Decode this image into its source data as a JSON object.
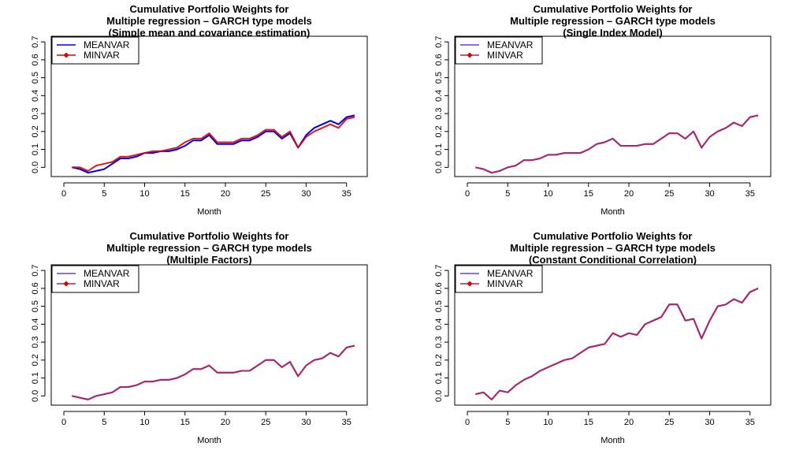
{
  "chart_data": [
    {
      "type": "line",
      "title": [
        "Cumulative Portfolio Weights for",
        "Multiple regression – GARCH type models",
        "(Simple mean and covariance estimation)"
      ],
      "xlabel": "Month",
      "ylabel": "",
      "xlim": [
        0,
        36
      ],
      "ylim": [
        0,
        0.7
      ],
      "xticks": [
        "0",
        "5",
        "10",
        "15",
        "20",
        "25",
        "30",
        "35"
      ],
      "yticks": [
        "0.0",
        "0.1",
        "0.2",
        "0.3",
        "0.4",
        "0.5",
        "0.6",
        "0.7"
      ],
      "legend": "top-left",
      "x": [
        1,
        2,
        3,
        4,
        5,
        6,
        7,
        8,
        9,
        10,
        11,
        12,
        13,
        14,
        15,
        16,
        17,
        18,
        19,
        20,
        21,
        22,
        23,
        24,
        25,
        26,
        27,
        28,
        29,
        30,
        31,
        32,
        33,
        34,
        35,
        36
      ],
      "series": [
        {
          "name": "MEANVAR",
          "color": "#0000ee",
          "marker": "none",
          "values": [
            0.0,
            -0.01,
            -0.03,
            -0.02,
            -0.01,
            0.02,
            0.05,
            0.05,
            0.06,
            0.08,
            0.08,
            0.09,
            0.09,
            0.1,
            0.12,
            0.15,
            0.15,
            0.18,
            0.13,
            0.13,
            0.13,
            0.15,
            0.15,
            0.17,
            0.2,
            0.2,
            0.16,
            0.19,
            0.11,
            0.18,
            0.22,
            0.24,
            0.26,
            0.24,
            0.28,
            0.29
          ]
        },
        {
          "name": "MINVAR",
          "color": "#dd0000",
          "marker": "diamond",
          "values": [
            0.0,
            0.0,
            -0.02,
            0.01,
            0.02,
            0.03,
            0.06,
            0.06,
            0.07,
            0.08,
            0.09,
            0.09,
            0.1,
            0.11,
            0.14,
            0.16,
            0.16,
            0.19,
            0.14,
            0.14,
            0.14,
            0.16,
            0.16,
            0.18,
            0.21,
            0.21,
            0.17,
            0.2,
            0.11,
            0.17,
            0.2,
            0.22,
            0.24,
            0.22,
            0.27,
            0.28
          ]
        }
      ]
    },
    {
      "type": "line",
      "title": [
        "Cumulative Portfolio Weights for",
        "Multiple regression – GARCH type models",
        "(Single Index Model)"
      ],
      "xlabel": "Month",
      "ylabel": "",
      "xlim": [
        0,
        36
      ],
      "ylim": [
        0,
        0.7
      ],
      "xticks": [
        "0",
        "5",
        "10",
        "15",
        "20",
        "25",
        "30",
        "35"
      ],
      "yticks": [
        "0.0",
        "0.1",
        "0.2",
        "0.3",
        "0.4",
        "0.5",
        "0.6",
        "0.7"
      ],
      "legend": "top-left",
      "x": [
        1,
        2,
        3,
        4,
        5,
        6,
        7,
        8,
        9,
        10,
        11,
        12,
        13,
        14,
        15,
        16,
        17,
        18,
        19,
        20,
        21,
        22,
        23,
        24,
        25,
        26,
        27,
        28,
        29,
        30,
        31,
        32,
        33,
        34,
        35,
        36
      ],
      "series": [
        {
          "name": "MEANVAR",
          "color": "#6a3fd9",
          "marker": "none",
          "values": [
            0.0,
            -0.01,
            -0.03,
            -0.02,
            0.0,
            0.01,
            0.04,
            0.04,
            0.05,
            0.07,
            0.07,
            0.08,
            0.08,
            0.08,
            0.1,
            0.13,
            0.14,
            0.16,
            0.12,
            0.12,
            0.12,
            0.13,
            0.13,
            0.16,
            0.19,
            0.19,
            0.16,
            0.2,
            0.11,
            0.17,
            0.2,
            0.22,
            0.25,
            0.23,
            0.28,
            0.29
          ]
        },
        {
          "name": "MINVAR",
          "color": "#b02060",
          "marker": "diamond",
          "values": [
            0.0,
            -0.01,
            -0.03,
            -0.02,
            0.0,
            0.01,
            0.04,
            0.04,
            0.05,
            0.07,
            0.07,
            0.08,
            0.08,
            0.08,
            0.1,
            0.13,
            0.14,
            0.16,
            0.12,
            0.12,
            0.12,
            0.13,
            0.13,
            0.16,
            0.19,
            0.19,
            0.16,
            0.2,
            0.11,
            0.17,
            0.2,
            0.22,
            0.25,
            0.23,
            0.28,
            0.29
          ]
        }
      ]
    },
    {
      "type": "line",
      "title": [
        "Cumulative Portfolio Weights for",
        "Multiple regression – GARCH type models",
        "(Multiple Factors)"
      ],
      "xlabel": "Month",
      "ylabel": "",
      "xlim": [
        0,
        36
      ],
      "ylim": [
        0,
        0.7
      ],
      "xticks": [
        "0",
        "5",
        "10",
        "15",
        "20",
        "25",
        "30",
        "35"
      ],
      "yticks": [
        "0.0",
        "0.1",
        "0.2",
        "0.3",
        "0.4",
        "0.5",
        "0.6",
        "0.7"
      ],
      "legend": "top-left",
      "x": [
        1,
        2,
        3,
        4,
        5,
        6,
        7,
        8,
        9,
        10,
        11,
        12,
        13,
        14,
        15,
        16,
        17,
        18,
        19,
        20,
        21,
        22,
        23,
        24,
        25,
        26,
        27,
        28,
        29,
        30,
        31,
        32,
        33,
        34,
        35,
        36
      ],
      "series": [
        {
          "name": "MEANVAR",
          "color": "#6a3fd9",
          "marker": "none",
          "values": [
            0.0,
            -0.01,
            -0.02,
            0.0,
            0.01,
            0.02,
            0.05,
            0.05,
            0.06,
            0.08,
            0.08,
            0.09,
            0.09,
            0.1,
            0.12,
            0.15,
            0.15,
            0.17,
            0.13,
            0.13,
            0.13,
            0.14,
            0.14,
            0.17,
            0.2,
            0.2,
            0.16,
            0.19,
            0.11,
            0.17,
            0.2,
            0.21,
            0.24,
            0.22,
            0.27,
            0.28
          ]
        },
        {
          "name": "MINVAR",
          "color": "#b02060",
          "marker": "diamond",
          "values": [
            0.0,
            -0.01,
            -0.02,
            0.0,
            0.01,
            0.02,
            0.05,
            0.05,
            0.06,
            0.08,
            0.08,
            0.09,
            0.09,
            0.1,
            0.12,
            0.15,
            0.15,
            0.17,
            0.13,
            0.13,
            0.13,
            0.14,
            0.14,
            0.17,
            0.2,
            0.2,
            0.16,
            0.19,
            0.11,
            0.17,
            0.2,
            0.21,
            0.24,
            0.22,
            0.27,
            0.28
          ]
        }
      ]
    },
    {
      "type": "line",
      "title": [
        "Cumulative Portfolio Weights for",
        "Multiple regression – GARCH type models",
        "(Constant Conditional Correlation)"
      ],
      "xlabel": "Month",
      "ylabel": "",
      "xlim": [
        0,
        36
      ],
      "ylim": [
        0,
        0.7
      ],
      "xticks": [
        "0",
        "5",
        "10",
        "15",
        "20",
        "25",
        "30",
        "35"
      ],
      "yticks": [
        "0.0",
        "0.1",
        "0.2",
        "0.3",
        "0.4",
        "0.5",
        "0.6",
        "0.7"
      ],
      "legend": "top-left",
      "x": [
        1,
        2,
        3,
        4,
        5,
        6,
        7,
        8,
        9,
        10,
        11,
        12,
        13,
        14,
        15,
        16,
        17,
        18,
        19,
        20,
        21,
        22,
        23,
        24,
        25,
        26,
        27,
        28,
        29,
        30,
        31,
        32,
        33,
        34,
        35,
        36
      ],
      "series": [
        {
          "name": "MEANVAR",
          "color": "#6a3fd9",
          "marker": "none",
          "values": [
            0.01,
            0.02,
            -0.02,
            0.03,
            0.02,
            0.06,
            0.09,
            0.11,
            0.14,
            0.16,
            0.18,
            0.2,
            0.21,
            0.24,
            0.27,
            0.28,
            0.29,
            0.35,
            0.33,
            0.35,
            0.34,
            0.4,
            0.42,
            0.44,
            0.51,
            0.51,
            0.42,
            0.43,
            0.32,
            0.42,
            0.5,
            0.51,
            0.54,
            0.52,
            0.58,
            0.6
          ]
        },
        {
          "name": "MINVAR",
          "color": "#b02060",
          "marker": "diamond",
          "values": [
            0.01,
            0.02,
            -0.02,
            0.03,
            0.02,
            0.06,
            0.09,
            0.11,
            0.14,
            0.16,
            0.18,
            0.2,
            0.21,
            0.24,
            0.27,
            0.28,
            0.29,
            0.35,
            0.33,
            0.35,
            0.34,
            0.4,
            0.42,
            0.44,
            0.51,
            0.51,
            0.42,
            0.43,
            0.32,
            0.42,
            0.5,
            0.51,
            0.54,
            0.52,
            0.58,
            0.6
          ]
        }
      ]
    }
  ]
}
